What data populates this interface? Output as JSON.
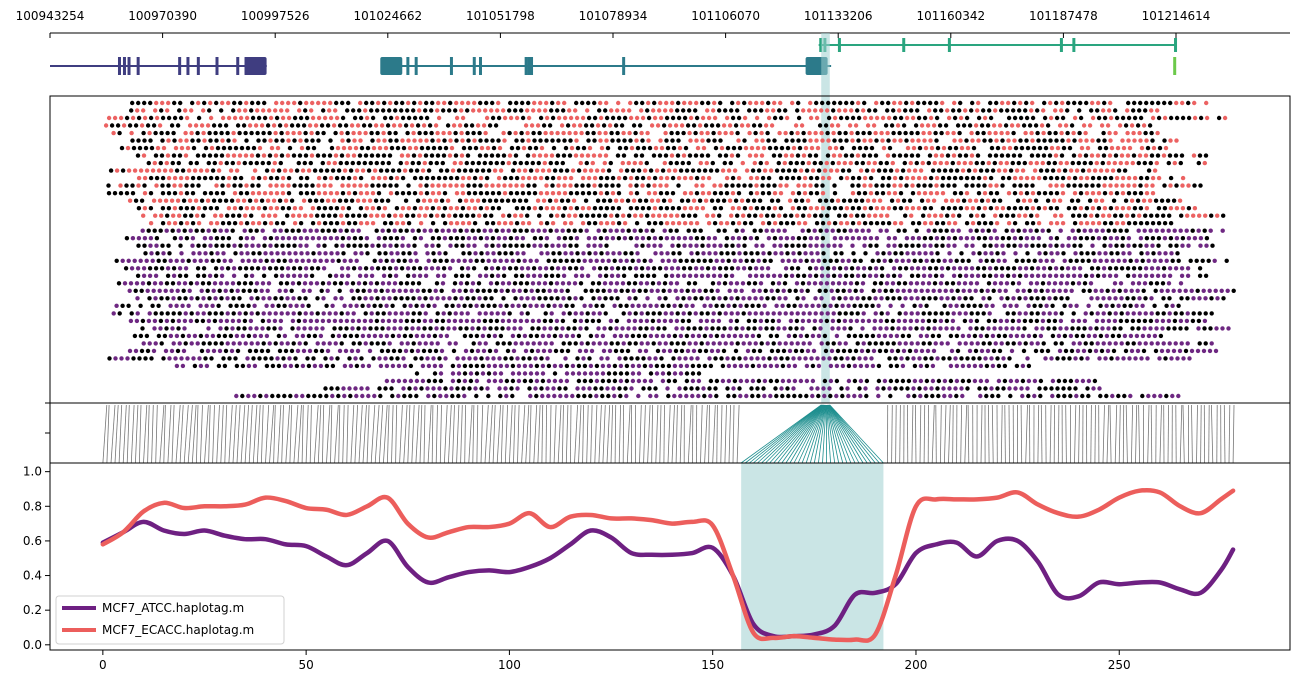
{
  "figure_title": "",
  "chart_data": [
    {
      "panel": "gene-track",
      "type": "gene_annotation",
      "xaxis_position_ticks": [
        "100943254",
        "100970390",
        "100997526",
        "101024662",
        "101051798",
        "101078934",
        "101106070",
        "101133206",
        "101160342",
        "101187478",
        "101214614"
      ],
      "genes": [
        {
          "color": "#3f3d80",
          "start": 100943254,
          "end": 100995500,
          "exons": [
            100960000,
            100961200,
            100962300,
            100964500,
            100974500,
            100976500,
            100979000,
            100983500,
            100988500,
            100990500,
            100992800
          ]
        },
        {
          "color": "#2c7a8a",
          "start": 101024662,
          "end": 101131500,
          "exons": [
            101025500,
            101027500,
            101029500,
            101031500,
            101040000,
            101045500,
            101047000,
            101058000,
            101058700,
            101059300,
            101081500,
            101128000
          ]
        },
        {
          "color": "#2aa57f",
          "start": 101128500,
          "end": 101214614,
          "exons": [
            101129000,
            101130000,
            101133500,
            101149000,
            101160000,
            101187000,
            101190000,
            101214500
          ]
        },
        {
          "color": "#6cc94a",
          "start": 101214000,
          "end": 101214600,
          "exons": [
            101214300
          ]
        }
      ]
    },
    {
      "panel": "read-methylation-plot",
      "type": "scatter",
      "xlim": [
        -13,
        292
      ],
      "groups": [
        {
          "name": "MCF7_ECACC.haplotag.m",
          "color": "#ec6262",
          "unmethylated_color": "#000000"
        },
        {
          "name": "MCF7_ATCC.haplotag.m",
          "color": "#6e2882",
          "unmethylated_color": "#000000"
        }
      ],
      "highlight_region": [
        176.7,
        178.8
      ]
    },
    {
      "panel": "cpg-linker",
      "type": "connector",
      "cpg_count": 279,
      "highlight_cpg_range": [
        157,
        192
      ]
    },
    {
      "panel": "smoothed-methylation",
      "type": "line",
      "xlabel": "",
      "ylabel": "",
      "xlim": [
        -13,
        292
      ],
      "ylim": [
        -0.03,
        1.05
      ],
      "xticks": [
        0,
        50,
        100,
        150,
        200,
        250
      ],
      "yticks": [
        0.0,
        0.2,
        0.4,
        0.6,
        0.8,
        1.0
      ],
      "highlight_region": [
        157,
        192
      ],
      "legend_location": "lower-left",
      "x": [
        0,
        5,
        10,
        15,
        20,
        25,
        30,
        35,
        40,
        45,
        50,
        55,
        60,
        65,
        70,
        75,
        80,
        85,
        90,
        95,
        100,
        105,
        110,
        115,
        120,
        125,
        130,
        135,
        140,
        145,
        150,
        155,
        160,
        165,
        170,
        175,
        180,
        185,
        190,
        195,
        200,
        205,
        210,
        215,
        220,
        225,
        230,
        235,
        240,
        245,
        250,
        255,
        260,
        265,
        270,
        275,
        278
      ],
      "series": [
        {
          "name": "MCF7_ATCC.haplotag.m",
          "color": "#6e2082",
          "values": [
            0.59,
            0.65,
            0.71,
            0.66,
            0.64,
            0.66,
            0.63,
            0.61,
            0.61,
            0.58,
            0.57,
            0.51,
            0.46,
            0.53,
            0.6,
            0.45,
            0.36,
            0.39,
            0.42,
            0.43,
            0.42,
            0.45,
            0.5,
            0.58,
            0.66,
            0.62,
            0.53,
            0.52,
            0.52,
            0.53,
            0.56,
            0.4,
            0.12,
            0.05,
            0.05,
            0.06,
            0.11,
            0.29,
            0.3,
            0.35,
            0.53,
            0.58,
            0.59,
            0.51,
            0.6,
            0.6,
            0.48,
            0.29,
            0.28,
            0.36,
            0.35,
            0.36,
            0.36,
            0.32,
            0.3,
            0.43,
            0.55
          ]
        },
        {
          "name": "MCF7_ECACC.haplotag.m",
          "color": "#ec5e5c",
          "values": [
            0.58,
            0.65,
            0.77,
            0.82,
            0.79,
            0.8,
            0.8,
            0.81,
            0.85,
            0.83,
            0.79,
            0.78,
            0.75,
            0.8,
            0.85,
            0.7,
            0.62,
            0.65,
            0.68,
            0.68,
            0.7,
            0.76,
            0.68,
            0.74,
            0.75,
            0.73,
            0.73,
            0.72,
            0.7,
            0.71,
            0.69,
            0.4,
            0.07,
            0.04,
            0.05,
            0.04,
            0.03,
            0.03,
            0.06,
            0.4,
            0.8,
            0.84,
            0.84,
            0.84,
            0.85,
            0.88,
            0.81,
            0.76,
            0.74,
            0.78,
            0.85,
            0.89,
            0.88,
            0.8,
            0.76,
            0.84,
            0.89
          ]
        }
      ]
    }
  ]
}
